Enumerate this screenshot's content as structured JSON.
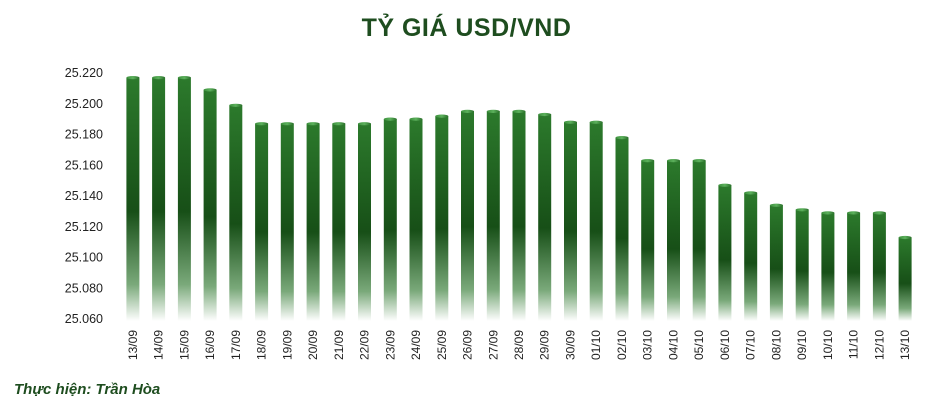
{
  "chart_data": {
    "type": "bar",
    "title": "TỶ GIÁ USD/VND",
    "xlabel": "",
    "ylabel": "",
    "ylim": [
      25060,
      25220
    ],
    "ytick_values": [
      25060,
      25080,
      25100,
      25120,
      25140,
      25160,
      25180,
      25200,
      25220
    ],
    "ytick_labels": [
      "25.060",
      "25.080",
      "25.100",
      "25.120",
      "25.140",
      "25.160",
      "25.180",
      "25.200",
      "25.220"
    ],
    "categories": [
      "13/09",
      "14/09",
      "15/09",
      "16/09",
      "17/09",
      "18/09",
      "19/09",
      "20/09",
      "21/09",
      "22/09",
      "23/09",
      "24/09",
      "25/09",
      "26/09",
      "27/09",
      "28/09",
      "29/09",
      "30/09",
      "01/10",
      "02/10",
      "03/10",
      "04/10",
      "05/10",
      "06/10",
      "07/10",
      "08/10",
      "09/10",
      "10/10",
      "11/10",
      "12/10",
      "13/10"
    ],
    "values": [
      25217,
      25217,
      25217,
      25209,
      25199,
      25187,
      25187,
      25187,
      25187,
      25187,
      25190,
      25190,
      25192,
      25195,
      25195,
      25195,
      25193,
      25188,
      25188,
      25178,
      25163,
      25163,
      25163,
      25147,
      25142,
      25134,
      25131,
      25129,
      25129,
      25129,
      25113
    ],
    "grid": false,
    "legend": "none",
    "colors": {
      "bar_top": "#2c7a2c",
      "bar_dark": "#174f17",
      "bar_fade": "#ffffff"
    }
  },
  "credit": "Thực hiện: Trần Hòa"
}
